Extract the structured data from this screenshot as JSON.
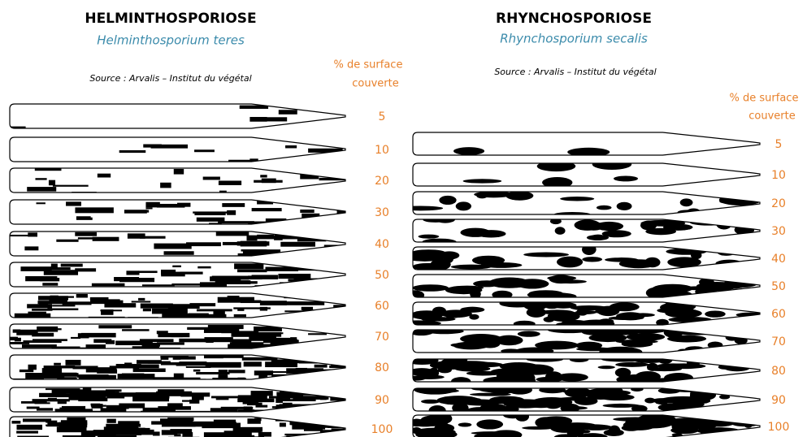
{
  "panels": [
    {
      "title": "HELMINTHOSPORIOSE",
      "subtitle": "Helminthosporium teres",
      "source": "Source : Arvalis – Institut du végétal",
      "scale_label": [
        "% de surface",
        "couverte"
      ],
      "levels": [
        5,
        10,
        20,
        30,
        40,
        50,
        60,
        70,
        80,
        90,
        100
      ]
    },
    {
      "title": "RHYNCHOSPORIOSE",
      "subtitle": "Rhynchosporium secalis",
      "source": "Source : Arvalis – Institut du végétal",
      "scale_label": [
        "% de surface",
        "couverte"
      ],
      "levels": [
        5,
        10,
        20,
        30,
        40,
        50,
        60,
        70,
        80,
        90,
        100
      ]
    }
  ]
}
